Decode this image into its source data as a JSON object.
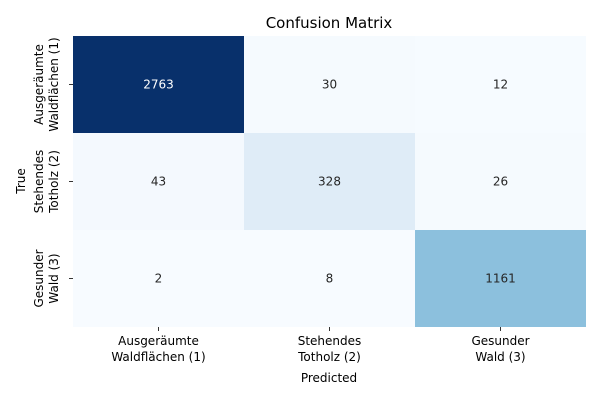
{
  "chart_data": {
    "type": "heatmap",
    "title": "Confusion Matrix",
    "xlabel": "Predicted",
    "ylabel": "True",
    "x_categories": [
      [
        "Ausgeräumte",
        "Waldflächen (1)"
      ],
      [
        "Stehendes",
        "Totholz (2)"
      ],
      [
        "Gesunder",
        "Wald (3)"
      ]
    ],
    "y_categories": [
      [
        "Ausgeräumte",
        "Waldflächen (1)"
      ],
      [
        "Stehendes",
        "Totholz (2)"
      ],
      [
        "Gesunder",
        "Wald (3)"
      ]
    ],
    "values": [
      [
        2763,
        30,
        12
      ],
      [
        43,
        328,
        26
      ],
      [
        2,
        8,
        1161
      ]
    ],
    "colormap": "Blues",
    "colorbar": false,
    "grid": false
  }
}
